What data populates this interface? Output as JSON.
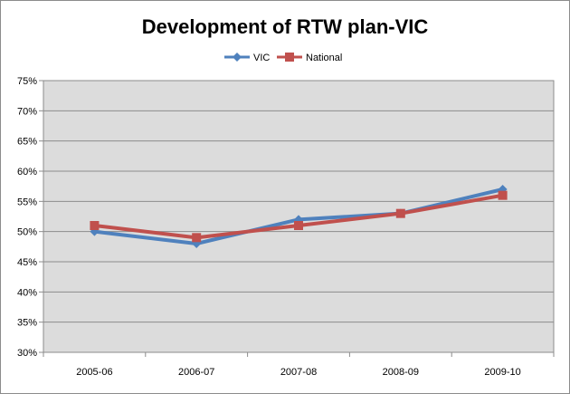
{
  "chart_data": {
    "type": "line",
    "title": "Development of RTW plan-VIC",
    "xlabel": "",
    "ylabel": "",
    "categories": [
      "2005-06",
      "2006-07",
      "2007-08",
      "2008-09",
      "2009-10"
    ],
    "series": [
      {
        "name": "VIC",
        "values": [
          50,
          48,
          52,
          53,
          57
        ],
        "color": "#4F81BD",
        "marker": "diamond"
      },
      {
        "name": "National",
        "values": [
          51,
          49,
          51,
          53,
          56
        ],
        "color": "#C0504D",
        "marker": "square"
      }
    ],
    "ylim": [
      30,
      75
    ],
    "yticks": [
      "30%",
      "35%",
      "40%",
      "45%",
      "50%",
      "55%",
      "60%",
      "65%",
      "70%",
      "75%"
    ],
    "ytick_values": [
      30,
      35,
      40,
      45,
      50,
      55,
      60,
      65,
      70,
      75
    ],
    "grid": true,
    "legend_position": "top",
    "plot_background": "#DCDCDC"
  }
}
